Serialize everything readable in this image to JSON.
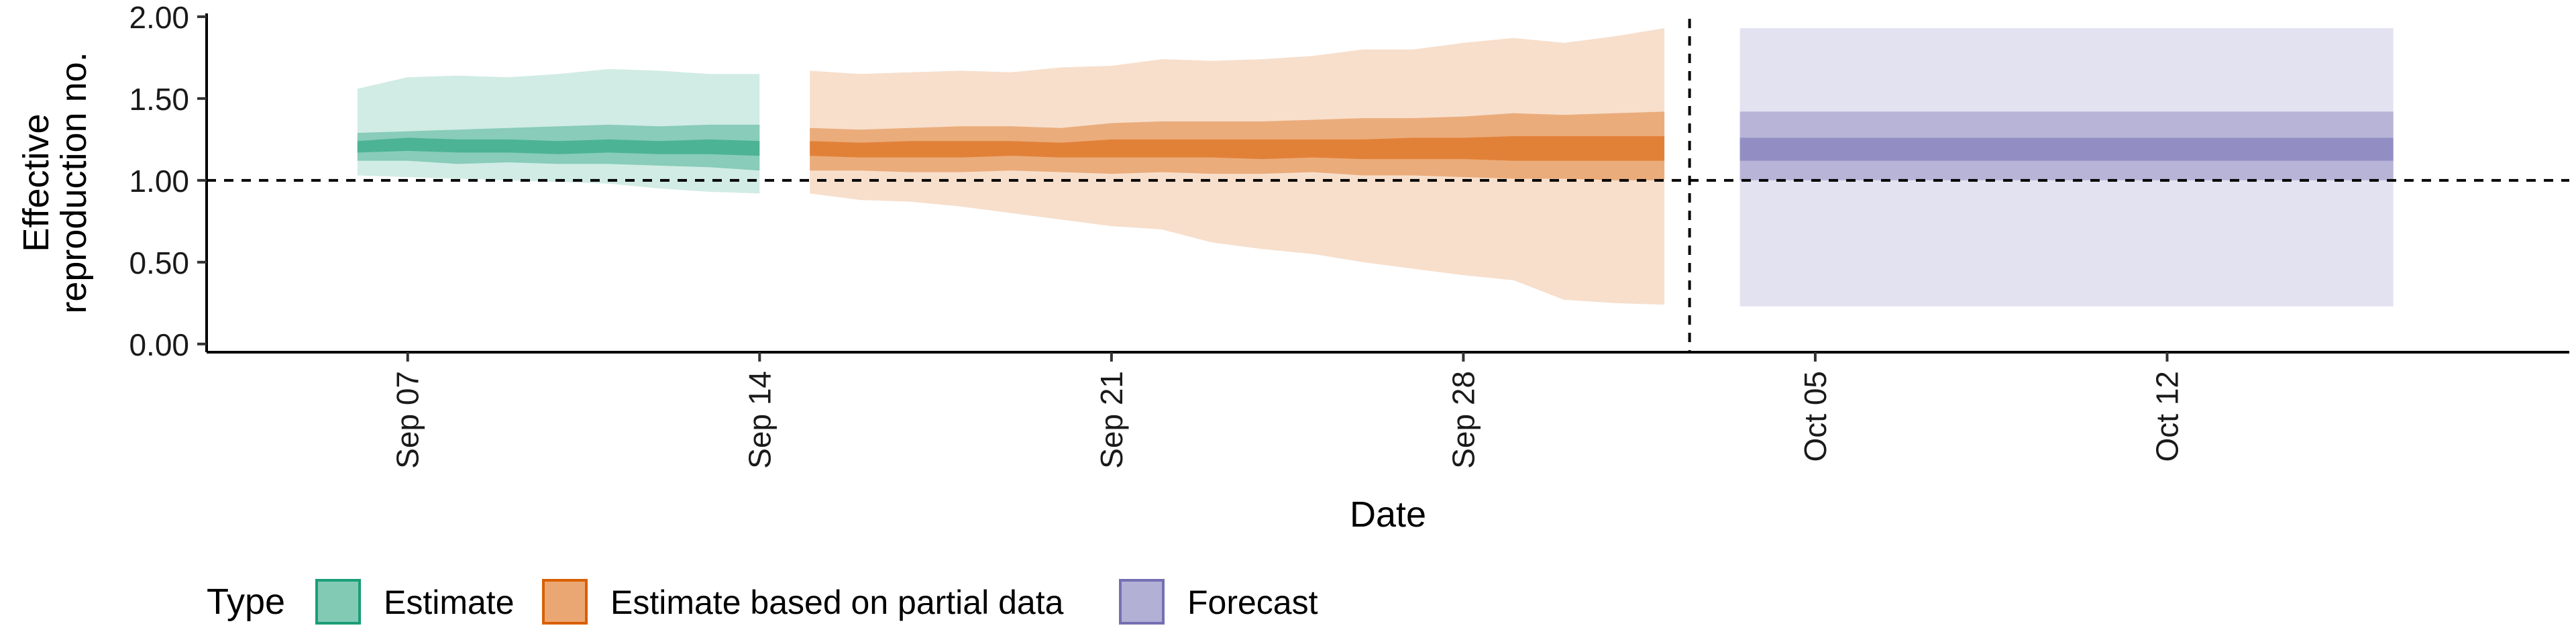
{
  "chart_data": {
    "type": "area",
    "xlabel": "Date",
    "ylabel_lines": [
      "Effective",
      "reproduction no."
    ],
    "x_start": "2020-09-03",
    "x_end": "2020-10-20",
    "ylim": [
      -0.05,
      2.02
    ],
    "y_ticks": [
      0.0,
      0.5,
      1.0,
      1.5,
      2.0
    ],
    "y_tick_labels": [
      "0.00",
      "0.50",
      "1.00",
      "1.50",
      "2.00"
    ],
    "x_ticks": [
      "2020-09-07",
      "2020-09-14",
      "2020-09-21",
      "2020-09-28",
      "2020-10-05",
      "2020-10-12"
    ],
    "x_tick_labels": [
      "Sep 07",
      "Sep 14",
      "Sep 21",
      "Sep 28",
      "Oct 05",
      "Oct 12"
    ],
    "reference_line_y": 1.0,
    "vertical_line_x": "2020-10-02",
    "legend": {
      "title": "Type",
      "position": "bottom",
      "entries": [
        "Estimate",
        "Estimate based on partial data",
        "Forecast"
      ]
    },
    "series": [
      {
        "name": "Estimate",
        "color": "#1b9e77",
        "x": [
          "2020-09-06",
          "2020-09-07",
          "2020-09-08",
          "2020-09-09",
          "2020-09-10",
          "2020-09-11",
          "2020-09-12",
          "2020-09-13",
          "2020-09-14"
        ],
        "lower_90": [
          1.03,
          1.02,
          1.01,
          1.0,
          0.99,
          0.98,
          0.95,
          0.93,
          0.92
        ],
        "upper_90": [
          1.56,
          1.63,
          1.64,
          1.63,
          1.65,
          1.68,
          1.67,
          1.65,
          1.65
        ],
        "lower_50": [
          1.12,
          1.12,
          1.1,
          1.11,
          1.1,
          1.1,
          1.09,
          1.08,
          1.06
        ],
        "upper_50": [
          1.29,
          1.3,
          1.31,
          1.32,
          1.33,
          1.34,
          1.33,
          1.34,
          1.34
        ],
        "lower_20": [
          1.17,
          1.18,
          1.17,
          1.17,
          1.16,
          1.17,
          1.16,
          1.16,
          1.15
        ],
        "upper_20": [
          1.24,
          1.26,
          1.25,
          1.25,
          1.24,
          1.25,
          1.24,
          1.25,
          1.24
        ]
      },
      {
        "name": "Estimate based on partial data",
        "color": "#d95f02",
        "x": [
          "2020-09-15",
          "2020-09-16",
          "2020-09-17",
          "2020-09-18",
          "2020-09-19",
          "2020-09-20",
          "2020-09-21",
          "2020-09-22",
          "2020-09-23",
          "2020-09-24",
          "2020-09-25",
          "2020-09-26",
          "2020-09-27",
          "2020-09-28",
          "2020-09-29",
          "2020-09-30",
          "2020-10-01",
          "2020-10-02"
        ],
        "lower_90": [
          0.92,
          0.88,
          0.87,
          0.84,
          0.8,
          0.76,
          0.72,
          0.7,
          0.62,
          0.58,
          0.55,
          0.5,
          0.46,
          0.42,
          0.39,
          0.27,
          0.25,
          0.24
        ],
        "upper_90": [
          1.67,
          1.65,
          1.66,
          1.67,
          1.66,
          1.69,
          1.7,
          1.74,
          1.73,
          1.74,
          1.76,
          1.8,
          1.8,
          1.84,
          1.87,
          1.84,
          1.88,
          1.93
        ],
        "lower_50": [
          1.06,
          1.06,
          1.05,
          1.05,
          1.06,
          1.05,
          1.04,
          1.05,
          1.04,
          1.04,
          1.05,
          1.03,
          1.03,
          1.02,
          1.01,
          1.01,
          1.0,
          1.0
        ],
        "upper_50": [
          1.32,
          1.31,
          1.32,
          1.33,
          1.33,
          1.32,
          1.35,
          1.36,
          1.36,
          1.36,
          1.37,
          1.38,
          1.38,
          1.39,
          1.41,
          1.4,
          1.41,
          1.42
        ],
        "lower_20": [
          1.15,
          1.14,
          1.14,
          1.14,
          1.15,
          1.14,
          1.14,
          1.14,
          1.14,
          1.13,
          1.14,
          1.13,
          1.13,
          1.13,
          1.12,
          1.12,
          1.12,
          1.12
        ],
        "upper_20": [
          1.24,
          1.23,
          1.24,
          1.24,
          1.24,
          1.23,
          1.25,
          1.25,
          1.25,
          1.25,
          1.25,
          1.25,
          1.26,
          1.26,
          1.27,
          1.27,
          1.27,
          1.27
        ]
      },
      {
        "name": "Forecast",
        "color": "#7570b3",
        "x": [
          "2020-10-03",
          "2020-10-16"
        ],
        "lower_90": [
          0.23,
          0.23
        ],
        "upper_90": [
          1.93,
          1.93
        ],
        "lower_50": [
          1.0,
          1.0
        ],
        "upper_50": [
          1.42,
          1.42
        ],
        "lower_20": [
          1.12,
          1.12
        ],
        "upper_20": [
          1.26,
          1.26
        ]
      }
    ]
  }
}
